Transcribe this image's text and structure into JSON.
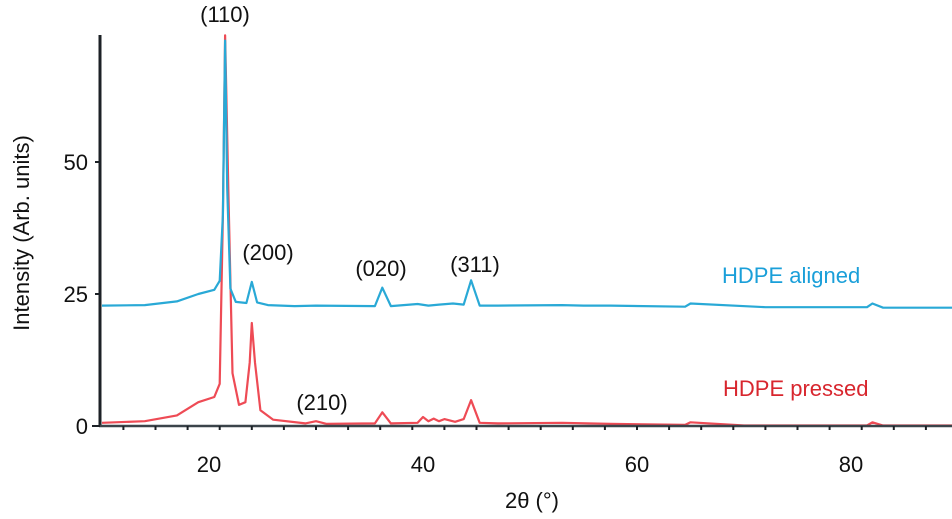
{
  "chart_data": {
    "type": "line",
    "title": "",
    "xlabel": "2θ (°)",
    "ylabel": "Intensity (Arb. units)",
    "xlim": [
      10,
      90
    ],
    "ylim": [
      0,
      74
    ],
    "xticks": [
      20,
      40,
      60,
      80
    ],
    "yticks": [
      0,
      25,
      50
    ],
    "grid": false,
    "legend_position": "inline-right",
    "series": [
      {
        "name": "HDPE aligned",
        "color": "#29a9d6",
        "label_color": "#1a9fd9",
        "x": [
          10,
          14,
          17,
          19,
          20.5,
          21.0,
          21.3,
          21.5,
          21.7,
          22.0,
          22.5,
          23.5,
          24.0,
          24.5,
          25.5,
          28,
          30,
          35.5,
          36.2,
          37.0,
          39.5,
          40.5,
          41.5,
          42.8,
          43.8,
          44.5,
          45.3,
          47,
          53,
          55,
          57.5,
          64.5,
          65,
          72,
          81.5,
          82,
          83,
          90
        ],
        "values": [
          22.8,
          22.9,
          23.6,
          25.0,
          25.8,
          27.5,
          40,
          73,
          45,
          26.0,
          23.5,
          23.3,
          27.3,
          23.4,
          22.9,
          22.7,
          22.8,
          22.7,
          26.2,
          22.7,
          23.1,
          22.8,
          23.0,
          23.2,
          23.0,
          27.6,
          22.8,
          22.8,
          22.9,
          22.8,
          22.8,
          22.6,
          23.2,
          22.5,
          22.5,
          23.2,
          22.4,
          22.4
        ]
      },
      {
        "name": "HDPE pressed",
        "color": "#ee4b55",
        "label_color": "#d8262e",
        "x": [
          10,
          14,
          17,
          19,
          20.5,
          21.0,
          21.3,
          21.5,
          21.8,
          22.2,
          22.8,
          23.4,
          23.8,
          24.0,
          24.3,
          24.8,
          26,
          29,
          30,
          31,
          35.5,
          36.2,
          37.0,
          39.5,
          40.0,
          40.5,
          41.0,
          41.5,
          42.0,
          43.0,
          43.8,
          44.5,
          45.3,
          47,
          53,
          57.5,
          64.5,
          65,
          70,
          81.5,
          82,
          83,
          90
        ],
        "values": [
          0.6,
          0.9,
          2.0,
          4.5,
          5.5,
          8,
          40,
          74,
          45,
          10,
          4.0,
          4.5,
          12,
          19.5,
          12,
          3.0,
          1.2,
          0.5,
          0.9,
          0.4,
          0.5,
          2.6,
          0.5,
          0.6,
          1.7,
          0.9,
          1.4,
          0.9,
          1.3,
          0.8,
          1.3,
          4.9,
          0.6,
          0.5,
          0.6,
          0.4,
          0.2,
          0.7,
          0.1,
          0.1,
          0.7,
          0.1,
          0.1
        ]
      }
    ],
    "annotations": [
      {
        "text": "(110)",
        "x": 21.5,
        "y": 77
      },
      {
        "text": "(200)",
        "x": 24.5,
        "y": 32
      },
      {
        "text": "(020)",
        "x": 36.0,
        "y": 27.5
      },
      {
        "text": "(311)",
        "x": 44.5,
        "y": 28.5
      },
      {
        "text": "(210)",
        "x": 30.5,
        "y": 4
      }
    ]
  },
  "labels": {
    "x_axis_title": "2θ (°)",
    "y_axis_title": "Intensity (Arb. units)",
    "series_aligned": "HDPE aligned",
    "series_pressed": "HDPE pressed",
    "peak_110": "(110)",
    "peak_200": "(200)",
    "peak_020": "(020)",
    "peak_311": "(311)",
    "peak_210": "(210)",
    "ytick_0": "0",
    "ytick_25": "25",
    "ytick_50": "50",
    "xtick_20": "20",
    "xtick_40": "40",
    "xtick_60": "60",
    "xtick_80": "80"
  }
}
